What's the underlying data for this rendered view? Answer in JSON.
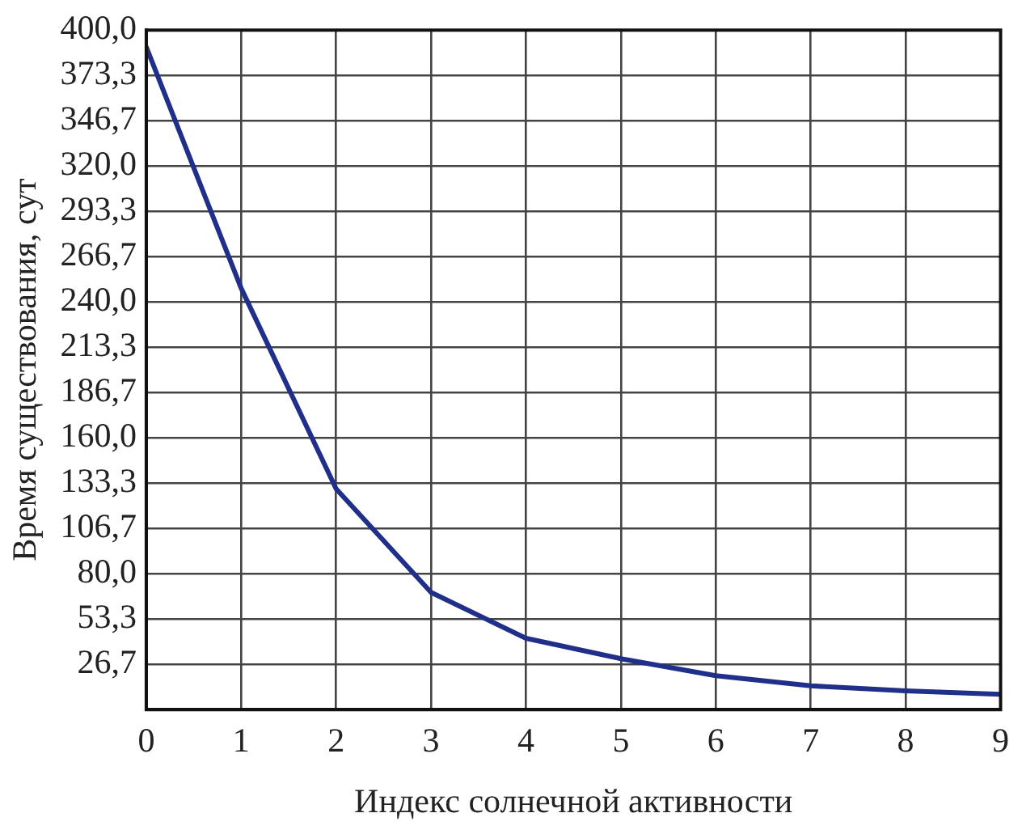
{
  "chart_data": {
    "type": "line",
    "xlabel": "Индекс солнечной активности",
    "ylabel": "Время существования, сут",
    "x": [
      0,
      1,
      2,
      3,
      4,
      5,
      6,
      7,
      8,
      9
    ],
    "series": [
      {
        "color": "#1f2f8a",
        "values": [
          390,
          248,
          130,
          69,
          42,
          30,
          20,
          14,
          11,
          9
        ]
      }
    ],
    "xlim": [
      0,
      9
    ],
    "xticks": [
      0,
      1,
      2,
      3,
      4,
      5,
      6,
      7,
      8,
      9
    ],
    "ylim": [
      0,
      400
    ],
    "yticks": [
      {
        "value": 26.7,
        "label": "26,7"
      },
      {
        "value": 53.3,
        "label": "53,3"
      },
      {
        "value": 80,
        "label": "80,0"
      },
      {
        "value": 106.7,
        "label": "106,7"
      },
      {
        "value": 133.3,
        "label": "133,3"
      },
      {
        "value": 160,
        "label": "160,0"
      },
      {
        "value": 186.7,
        "label": "186,7"
      },
      {
        "value": 213.3,
        "label": "213,3"
      },
      {
        "value": 240,
        "label": "240,0"
      },
      {
        "value": 266.7,
        "label": "266,7"
      },
      {
        "value": 293.3,
        "label": "293,3"
      },
      {
        "value": 320,
        "label": "320,0"
      },
      {
        "value": 346.7,
        "label": "346,7"
      },
      {
        "value": 373.3,
        "label": "373,3"
      },
      {
        "value": 400,
        "label": "400,0"
      }
    ],
    "grid": true,
    "legend": false,
    "marker": "none",
    "line_style": "solid"
  }
}
